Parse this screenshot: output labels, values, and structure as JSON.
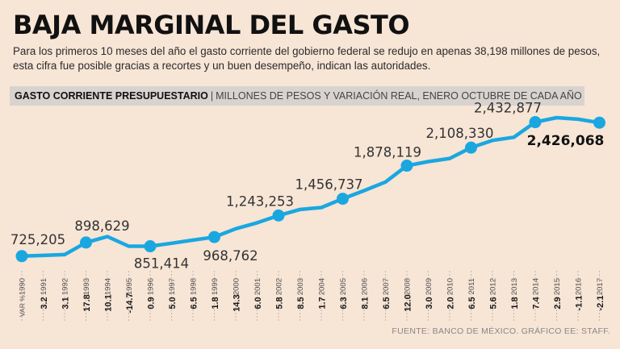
{
  "header": {
    "title": "BAJA MARGINAL DEL GASTO",
    "subtitle": "Para los primeros 10 meses del año el gasto corriente del gobierno federal se redujo en apenas 38,198 millones de pesos, esta cifra fue posible gracias a recortes y un buen desempeño, indican las autoridades.",
    "band_bold": "GASTO CORRIENTE PRESUPUESTARIO",
    "band_separator": "|",
    "band_rest": "MILLONES DE PESOS Y VARIACIÓN REAL, ENERO OCTUBRE DE CADA AÑO"
  },
  "footer": {
    "source": "FUENTE: BANCO DE MÉXICO.  GRÁFICO EE: STAFF."
  },
  "colors": {
    "line": "#1aa7e0",
    "background": "#f7e5d6",
    "band": "#d8d3cf"
  },
  "chart_data": {
    "type": "line",
    "title": "Gasto corriente presupuestario",
    "ylabel": "Millones de pesos",
    "ylim": [
      600000,
      2500000
    ],
    "var_label": "VAR %",
    "categories": [
      "1990",
      "1991",
      "1992",
      "1993",
      "1994",
      "1995",
      "1996",
      "1997",
      "1998",
      "1999",
      "2000",
      "2001",
      "2002",
      "2003",
      "2004",
      "2005",
      "2006",
      "2007",
      "2008",
      "2009",
      "2010",
      "2011",
      "2012",
      "2013",
      "2014",
      "2015",
      "2016",
      "2017"
    ],
    "values": [
      725205,
      735000,
      745000,
      898629,
      975000,
      851414,
      851414,
      890000,
      930000,
      968762,
      1075000,
      1150000,
      1243253,
      1320000,
      1345000,
      1456737,
      1560000,
      1670000,
      1878119,
      1930000,
      1970000,
      2108330,
      2200000,
      2240000,
      2432877,
      2490000,
      2470000,
      2426068
    ],
    "variation_pct": [
      "",
      "3.2",
      "3.1",
      "17.8",
      "10.1",
      "-14.7",
      "0.9",
      "5.0",
      "6.5",
      "1.8",
      "14.3",
      "6.0",
      "5.8",
      "8.5",
      "1.7",
      "6.3",
      "8.1",
      "6.5",
      "12.0",
      "3.0",
      "2.0",
      "6.5",
      "5.6",
      "1.8",
      "7.4",
      "2.9",
      "-1.1",
      "-2.1"
    ],
    "labeled_points": [
      {
        "year": "1990",
        "label": "725,205"
      },
      {
        "year": "1993",
        "label": "898,629"
      },
      {
        "year": "1996",
        "label": "851,414"
      },
      {
        "year": "1999",
        "label": "968,762"
      },
      {
        "year": "2002",
        "label": "1,243,253"
      },
      {
        "year": "2005",
        "label": "1,456,737"
      },
      {
        "year": "2008",
        "label": "1,878,119"
      },
      {
        "year": "2011",
        "label": "2,108,330"
      },
      {
        "year": "2014",
        "label": "2,432,877"
      },
      {
        "year": "2017",
        "label": "2,426,068"
      }
    ]
  }
}
